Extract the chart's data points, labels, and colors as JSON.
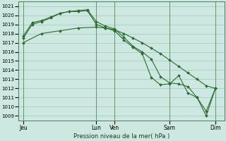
{
  "bg_color": "#cce8e0",
  "grid_color": "#a0c8bc",
  "line_color": "#2d6b2d",
  "marker_color": "#2d6b2d",
  "ylim": [
    1008.5,
    1021.5
  ],
  "yticks": [
    1009,
    1010,
    1011,
    1012,
    1013,
    1014,
    1015,
    1016,
    1017,
    1018,
    1019,
    1020,
    1021
  ],
  "xlabel": "Pression niveau de la mer( hPa )",
  "xtick_labels": [
    "Jeu",
    "Lun",
    "Ven",
    "Sam",
    "Dim"
  ],
  "xtick_pos": [
    0,
    8,
    10,
    16,
    21
  ],
  "xlim": [
    -0.5,
    22
  ],
  "vline_pos": [
    0,
    8,
    10,
    16,
    21
  ],
  "line1_x": [
    0,
    2,
    4,
    6,
    8,
    9,
    10,
    11,
    12,
    13,
    14,
    15,
    16,
    17,
    18,
    19,
    20,
    21
  ],
  "line1_y": [
    1017.0,
    1018.0,
    1018.3,
    1018.6,
    1018.7,
    1018.6,
    1018.4,
    1018.0,
    1017.5,
    1017.0,
    1016.4,
    1015.8,
    1015.1,
    1014.4,
    1013.7,
    1013.0,
    1012.3,
    1012.0
  ],
  "line2_x": [
    0,
    1,
    2,
    3,
    4,
    5,
    6,
    7,
    8,
    9,
    10,
    11,
    12,
    13,
    14,
    15,
    16,
    17,
    18,
    19,
    20,
    21
  ],
  "line2_y": [
    1017.7,
    1019.2,
    1019.4,
    1019.8,
    1020.2,
    1020.4,
    1020.5,
    1020.6,
    1019.3,
    1018.8,
    1018.5,
    1017.6,
    1016.6,
    1016.0,
    1015.2,
    1013.3,
    1012.6,
    1012.5,
    1012.2,
    1011.0,
    1009.5,
    1012.0
  ],
  "line3_x": [
    0,
    1,
    2,
    3,
    4,
    5,
    6,
    7,
    8,
    9,
    10,
    11,
    12,
    13,
    14,
    15,
    16,
    17,
    18,
    19,
    20,
    21
  ],
  "line3_y": [
    1017.5,
    1019.0,
    1019.3,
    1019.7,
    1020.2,
    1020.4,
    1020.4,
    1020.5,
    1019.0,
    1018.6,
    1018.3,
    1017.3,
    1016.5,
    1015.8,
    1013.2,
    1012.4,
    1012.5,
    1013.4,
    1011.5,
    1011.0,
    1009.0,
    1012.0
  ]
}
